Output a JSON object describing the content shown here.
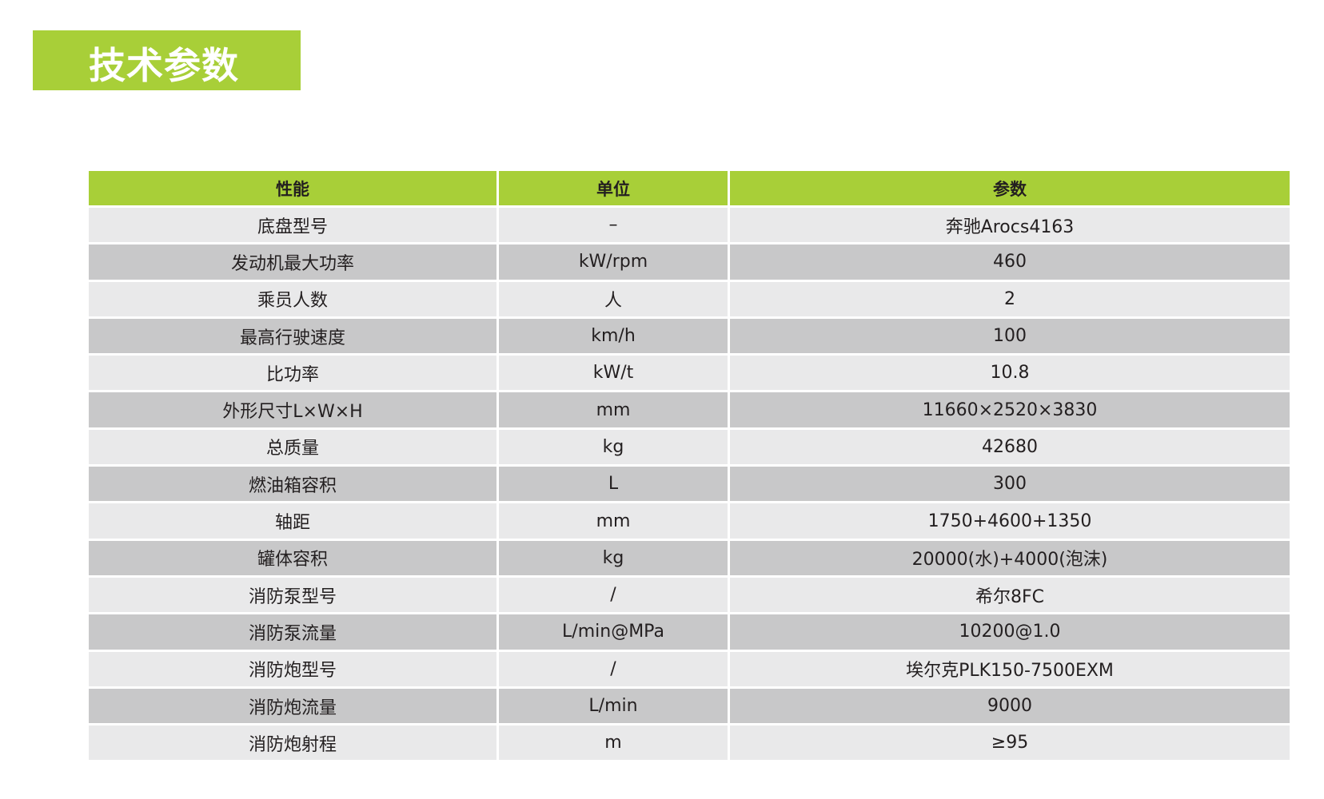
{
  "title": "技术参数",
  "table": {
    "headers": [
      "性能",
      "单位",
      "参数"
    ],
    "rows": [
      [
        "底盘型号",
        "–",
        "奔驰Arocs4163"
      ],
      [
        "发动机最大功率",
        "kW/rpm",
        "460"
      ],
      [
        "乘员人数",
        "人",
        "2"
      ],
      [
        "最高行驶速度",
        "km/h",
        "100"
      ],
      [
        "比功率",
        "kW/t",
        "10.8"
      ],
      [
        "外形尺寸L×W×H",
        "mm",
        "11660×2520×3830"
      ],
      [
        "总质量",
        "kg",
        "42680"
      ],
      [
        "燃油箱容积",
        "L",
        "300"
      ],
      [
        "轴距",
        "mm",
        "1750+4600+1350"
      ],
      [
        "罐体容积",
        "kg",
        "20000(水)+4000(泡沫)"
      ],
      [
        "消防泵型号",
        "/",
        "希尔8FC"
      ],
      [
        "消防泵流量",
        "L/min@MPa",
        "10200@1.0"
      ],
      [
        "消防炮型号",
        "/",
        "埃尔克PLK150-7500EXM"
      ],
      [
        "消防炮流量",
        "L/min",
        "9000"
      ],
      [
        "消防炮射程",
        "m",
        "≥95"
      ]
    ]
  },
  "colors": {
    "accent": "#a8cf38",
    "row_light": "#e9e9ea",
    "row_dark": "#c8c8c9"
  }
}
